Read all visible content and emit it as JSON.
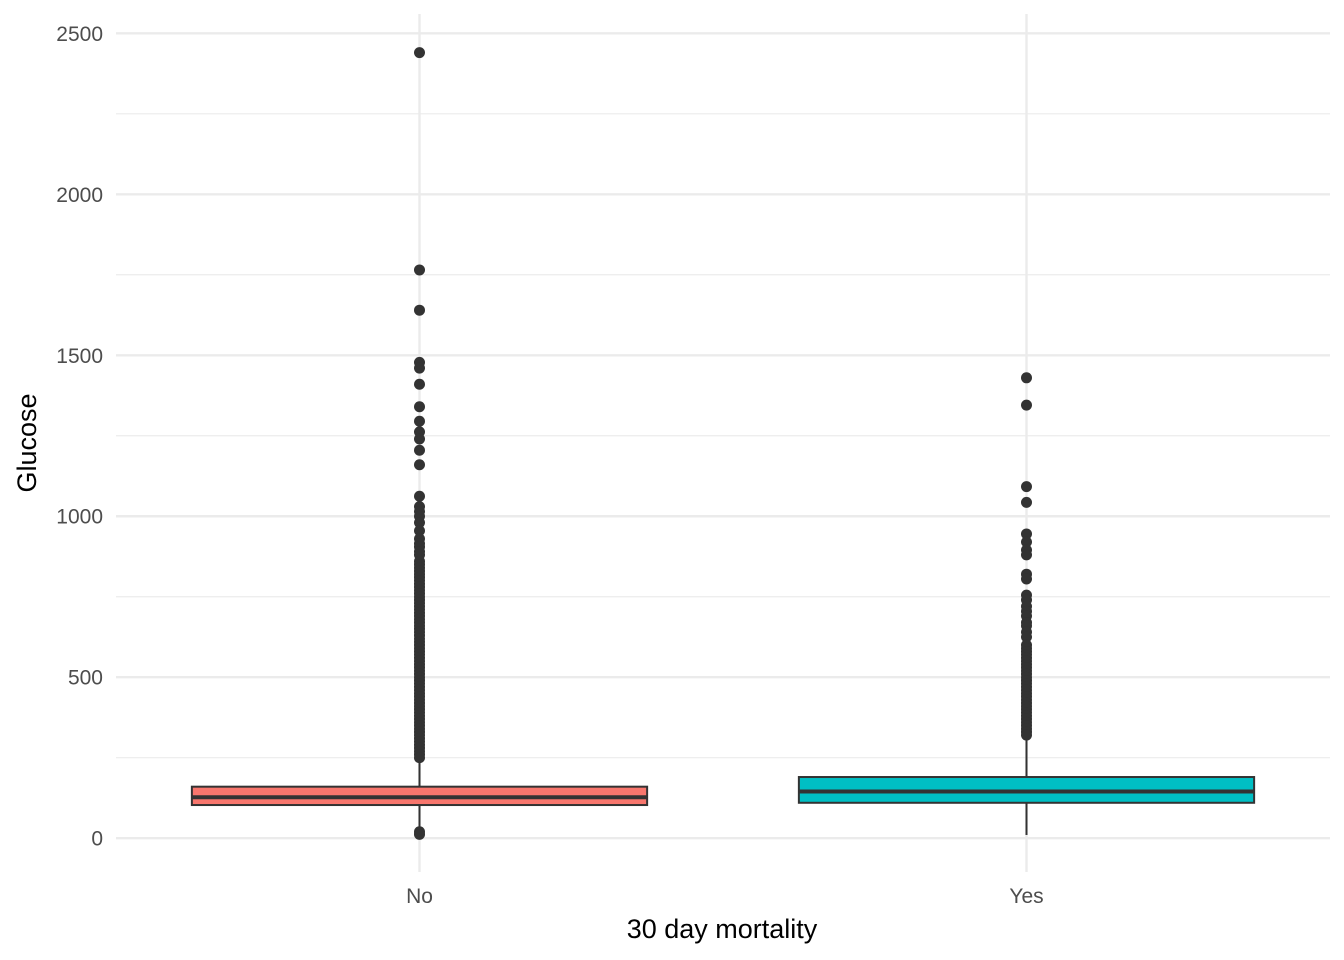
{
  "chart_data": {
    "type": "boxplot",
    "xlabel": "30 day mortality",
    "ylabel": "Glucose",
    "ylim": [
      -105,
      2560
    ],
    "y_ticks": [
      0,
      500,
      1000,
      1500,
      2000,
      2500
    ],
    "y_tick_labels": [
      "0",
      "500",
      "1000",
      "1500",
      "2000",
      "2500"
    ],
    "grid": true,
    "legend": "none",
    "categories": [
      "No",
      "Yes"
    ],
    "series": [
      {
        "category": "No",
        "color": "#F8766D",
        "whisker_low": 5,
        "q1": 103,
        "median": 127,
        "q3": 160,
        "whisker_high": 245,
        "outliers": [
          2440,
          1765,
          1640,
          1478,
          1460,
          1410,
          1340,
          1295,
          1262,
          1240,
          1205,
          1160,
          1062,
          1030,
          1015,
          1000,
          980,
          955,
          930,
          915,
          905,
          890,
          880,
          860,
          850,
          840,
          830,
          820,
          810,
          800,
          790,
          780,
          770,
          760,
          750,
          740,
          730,
          720,
          710,
          700,
          690,
          680,
          670,
          660,
          650,
          640,
          630,
          620,
          610,
          600,
          590,
          580,
          570,
          560,
          550,
          540,
          530,
          520,
          510,
          500,
          490,
          480,
          470,
          460,
          450,
          440,
          430,
          420,
          410,
          400,
          390,
          380,
          370,
          360,
          350,
          340,
          330,
          320,
          310,
          300,
          290,
          280,
          270,
          260,
          250,
          20,
          12
        ]
      },
      {
        "category": "Yes",
        "color": "#00BFC4",
        "whisker_low": 10,
        "q1": 110,
        "median": 145,
        "q3": 190,
        "whisker_high": 310,
        "outliers": [
          1430,
          1345,
          1092,
          1043,
          945,
          920,
          895,
          880,
          820,
          805,
          755,
          740,
          720,
          705,
          690,
          670,
          660,
          640,
          625,
          600,
          590,
          580,
          570,
          560,
          550,
          540,
          530,
          520,
          510,
          500,
          490,
          480,
          470,
          460,
          450,
          440,
          430,
          420,
          410,
          400,
          390,
          380,
          370,
          360,
          350,
          340,
          330,
          320
        ]
      }
    ]
  }
}
